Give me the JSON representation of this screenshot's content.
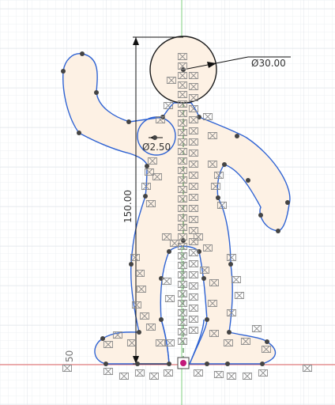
{
  "sketch": {
    "dimensions": {
      "head_diameter": "Ø30.00",
      "joint_diameter": "Ø2.50",
      "height": "150.00",
      "ruler_label": "50"
    },
    "colors": {
      "background": "#ffffff",
      "grid_minor": "#eef0f3",
      "grid_major": "#dfe3e8",
      "axis_x": "#e06060",
      "axis_y": "#7fcf7f",
      "profile_fill": "#fdf1e4",
      "profile_stroke": "#2f63d3",
      "dimension": "#111111",
      "point": "#444444",
      "constraint_glyph": "#8a8a8a",
      "origin_point": "#c2187a"
    },
    "constraint_glyph_char": "⌧",
    "origin_icon": "origin-point-icon"
  }
}
